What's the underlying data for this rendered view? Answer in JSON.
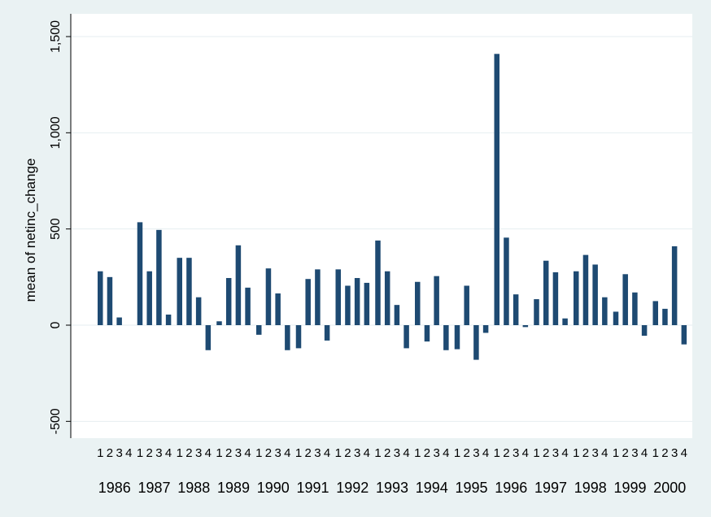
{
  "chart_data": {
    "type": "bar",
    "title": "",
    "ylabel": "mean of netinc_change",
    "xlabel": "",
    "ylim": [
      -550,
      1500
    ],
    "yticks": [
      -500,
      0,
      500,
      1000,
      1500
    ],
    "ytick_labels": [
      "-500",
      "0",
      "500",
      "1,000",
      "1,500"
    ],
    "grid": true,
    "colors": {
      "bar": "#1e4a72",
      "plot_bg": "#ffffff",
      "page_bg": "#eaf2f3",
      "grid": "#e6eef0"
    },
    "subcategories": [
      "1",
      "2",
      "3",
      "4"
    ],
    "groups": [
      {
        "label": "1986",
        "values": [
          280,
          250,
          40,
          null
        ]
      },
      {
        "label": "1987",
        "values": [
          535,
          280,
          495,
          55
        ]
      },
      {
        "label": "1988",
        "values": [
          350,
          350,
          145,
          -130
        ]
      },
      {
        "label": "1989",
        "values": [
          20,
          245,
          415,
          195
        ]
      },
      {
        "label": "1990",
        "values": [
          -50,
          295,
          165,
          -130
        ]
      },
      {
        "label": "1991",
        "values": [
          -120,
          240,
          290,
          -80
        ]
      },
      {
        "label": "1992",
        "values": [
          290,
          205,
          245,
          220
        ]
      },
      {
        "label": "1993",
        "values": [
          440,
          280,
          105,
          -120
        ]
      },
      {
        "label": "1994",
        "values": [
          225,
          -85,
          255,
          -130
        ]
      },
      {
        "label": "1995",
        "values": [
          -125,
          205,
          -180,
          -40
        ]
      },
      {
        "label": "1996",
        "values": [
          1410,
          455,
          160,
          -10
        ]
      },
      {
        "label": "1997",
        "values": [
          135,
          335,
          275,
          35
        ]
      },
      {
        "label": "1998",
        "values": [
          280,
          365,
          315,
          145
        ]
      },
      {
        "label": "1999",
        "values": [
          70,
          265,
          170,
          -55
        ]
      },
      {
        "label": "2000",
        "values": [
          125,
          85,
          410,
          -100
        ]
      }
    ]
  }
}
